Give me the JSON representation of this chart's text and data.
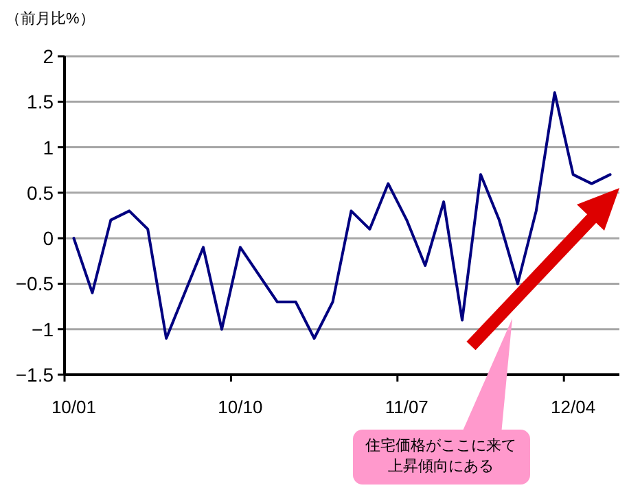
{
  "chart_data": {
    "type": "line",
    "ylabel": "（前月比%）",
    "categories": [
      "10/01",
      null,
      null,
      null,
      null,
      null,
      null,
      null,
      null,
      "10/10",
      null,
      null,
      null,
      null,
      null,
      null,
      null,
      null,
      "11/07",
      null,
      null,
      null,
      null,
      null,
      null,
      null,
      null,
      "12/04",
      null,
      null
    ],
    "values": [
      0,
      -0.6,
      0.2,
      0.3,
      0.1,
      -1.1,
      -0.6,
      -0.1,
      -1.0,
      -0.1,
      -0.4,
      -0.7,
      -0.7,
      -1.1,
      -0.7,
      0.3,
      0.1,
      0.6,
      0.2,
      -0.3,
      0.4,
      -0.9,
      0.7,
      0.2,
      -0.5,
      0.3,
      1.6,
      0.7,
      0.6,
      0.7
    ],
    "color": "#000080",
    "ylim": [
      -1.5,
      2
    ],
    "yticks": [
      -1.5,
      -1,
      -0.5,
      0,
      0.5,
      1,
      1.5,
      2
    ],
    "grid": "y",
    "annotations": [
      "住宅価格がここに来て",
      "上昇傾向にある"
    ]
  }
}
